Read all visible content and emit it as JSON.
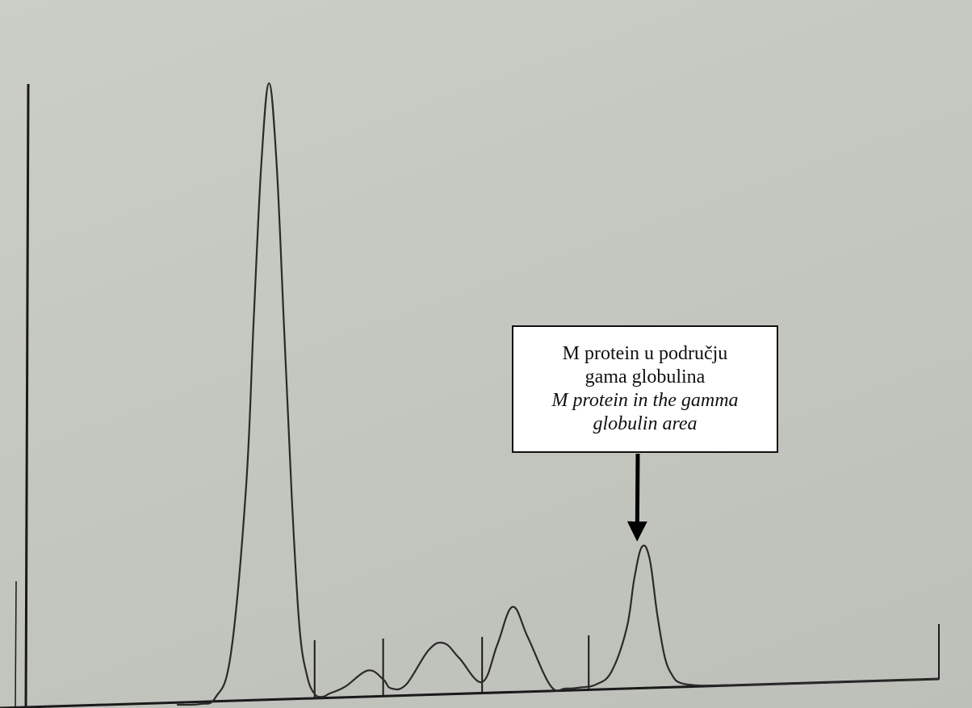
{
  "chart_data": {
    "type": "line",
    "description_axes": "densitometric electrophoresis trace",
    "x": [
      0,
      3,
      5,
      7,
      9,
      10,
      11,
      12,
      13,
      14,
      15,
      16,
      17,
      18,
      19,
      20,
      22,
      25,
      27,
      28,
      30,
      33,
      35,
      37,
      40,
      42,
      44,
      46,
      49,
      51,
      53,
      55,
      57,
      59,
      60,
      61,
      62,
      63,
      64,
      65,
      66,
      68,
      70,
      75,
      80,
      85,
      100
    ],
    "y": [
      0,
      0,
      0.01,
      0.08,
      0.35,
      0.62,
      0.87,
      1.0,
      0.87,
      0.6,
      0.33,
      0.12,
      0.04,
      0.01,
      0.005,
      0.01,
      0.02,
      0.045,
      0.03,
      0.015,
      0.02,
      0.075,
      0.085,
      0.06,
      0.02,
      0.08,
      0.14,
      0.09,
      0.01,
      0.005,
      0.006,
      0.01,
      0.03,
      0.1,
      0.18,
      0.23,
      0.21,
      0.12,
      0.05,
      0.02,
      0.008,
      0.003,
      0.002,
      0.001,
      0.0005,
      0.0002,
      0
    ],
    "ylim": [
      0,
      1
    ],
    "xlim": [
      0,
      100
    ],
    "fraction_dividers": [
      18,
      27,
      40,
      54
    ],
    "peak_positions": {
      "albumin": 12,
      "alpha1": 23,
      "alpha2": 34,
      "beta": 44,
      "gamma": 61
    },
    "annotation": {
      "line1": "M protein u području",
      "line2": "gama globulina",
      "line3": "M protein in the gamma",
      "line4": "globulin area",
      "target_x": 61
    },
    "grid": false,
    "colors": {
      "trace": "#2a2a2a",
      "axis": "#1a1a1a",
      "background": "#c4c6c0"
    }
  }
}
